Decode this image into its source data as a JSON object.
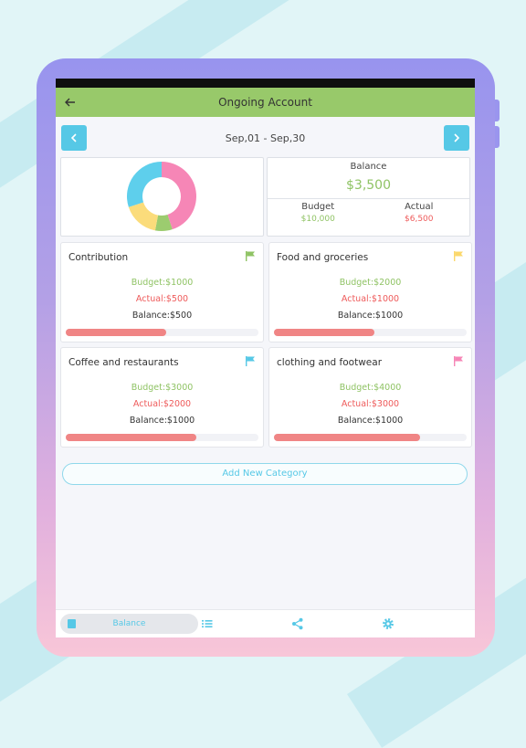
{
  "header": {
    "title": "Ongoing Account",
    "back_icon": "arrow-left-icon"
  },
  "period": {
    "label": "Sep,01 - Sep,30",
    "prev_icon": "chevron-left-icon",
    "next_icon": "chevron-right-icon"
  },
  "summary": {
    "balance_title": "Balance",
    "balance_value": "$3,500",
    "budget_label": "Budget",
    "budget_value": "$10,000",
    "actual_label": "Actual",
    "actual_value": "$6,500",
    "donut": [
      {
        "color": "#f686b6",
        "fraction": 0.45
      },
      {
        "color": "#9ccc6f",
        "fraction": 0.08
      },
      {
        "color": "#fbdc7b",
        "fraction": 0.17
      },
      {
        "color": "#5ecfec",
        "fraction": 0.3
      }
    ]
  },
  "categories": [
    {
      "name": "Contribution",
      "budget": "Budget:$1000",
      "actual": "Actual:$500",
      "balance": "Balance:$500",
      "flag_color": "#8fc364",
      "progress": 0.52
    },
    {
      "name": "Food and groceries",
      "budget": "Budget:$2000",
      "actual": "Actual:$1000",
      "balance": "Balance:$1000",
      "flag_color": "#fbd86c",
      "progress": 0.52
    },
    {
      "name": "Coffee and restaurants",
      "budget": "Budget:$3000",
      "actual": "Actual:$2000",
      "balance": "Balance:$1000",
      "flag_color": "#56c8e6",
      "progress": 0.68
    },
    {
      "name": "clothing and footwear",
      "budget": "Budget:$4000",
      "actual": "Actual:$3000",
      "balance": "Balance:$1000",
      "flag_color": "#f686b6",
      "progress": 0.76
    }
  ],
  "add_category_label": "Add New Category",
  "bottom_nav": {
    "balance_label": "Balance",
    "icons": [
      "wallet-icon",
      "list-icon",
      "share-icon",
      "gear-icon"
    ]
  },
  "colors": {
    "accent": "#56c8e6",
    "appbar": "#98c96a",
    "positive": "#8fc364",
    "negative": "#ee5a5a"
  }
}
